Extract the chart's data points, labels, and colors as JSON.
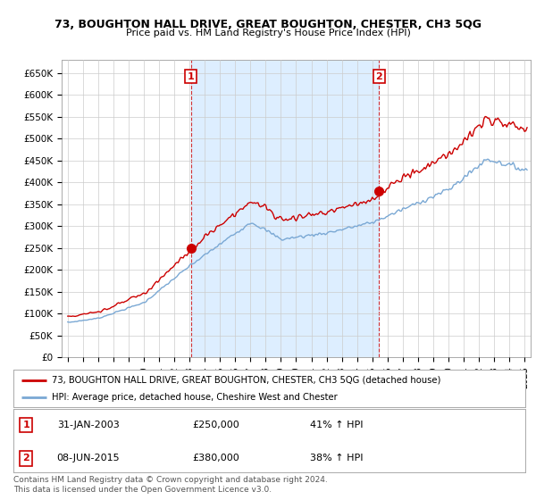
{
  "title": "73, BOUGHTON HALL DRIVE, GREAT BOUGHTON, CHESTER, CH3 5QG",
  "subtitle": "Price paid vs. HM Land Registry's House Price Index (HPI)",
  "ylim": [
    0,
    680000
  ],
  "yticks": [
    0,
    50000,
    100000,
    150000,
    200000,
    250000,
    300000,
    350000,
    400000,
    450000,
    500000,
    550000,
    600000,
    650000
  ],
  "ytick_labels": [
    "£0",
    "£50K",
    "£100K",
    "£150K",
    "£200K",
    "£250K",
    "£300K",
    "£350K",
    "£400K",
    "£450K",
    "£500K",
    "£550K",
    "£600K",
    "£650K"
  ],
  "hpi_color": "#7aa8d4",
  "price_color": "#cc0000",
  "shade_color": "#ddeeff",
  "sale1_x": 2003.08,
  "sale1_y": 250000,
  "sale1_label": "1",
  "sale2_x": 2015.44,
  "sale2_y": 380000,
  "sale2_label": "2",
  "legend_line1": "73, BOUGHTON HALL DRIVE, GREAT BOUGHTON, CHESTER, CH3 5QG (detached house)",
  "legend_line2": "HPI: Average price, detached house, Cheshire West and Chester",
  "table_row1": [
    "1",
    "31-JAN-2003",
    "£250,000",
    "41% ↑ HPI"
  ],
  "table_row2": [
    "2",
    "08-JUN-2015",
    "£380,000",
    "38% ↑ HPI"
  ],
  "footer": "Contains HM Land Registry data © Crown copyright and database right 2024.\nThis data is licensed under the Open Government Licence v3.0.",
  "background_color": "#ffffff",
  "grid_color": "#cccccc",
  "xlim_min": 1994.6,
  "xlim_max": 2025.4
}
